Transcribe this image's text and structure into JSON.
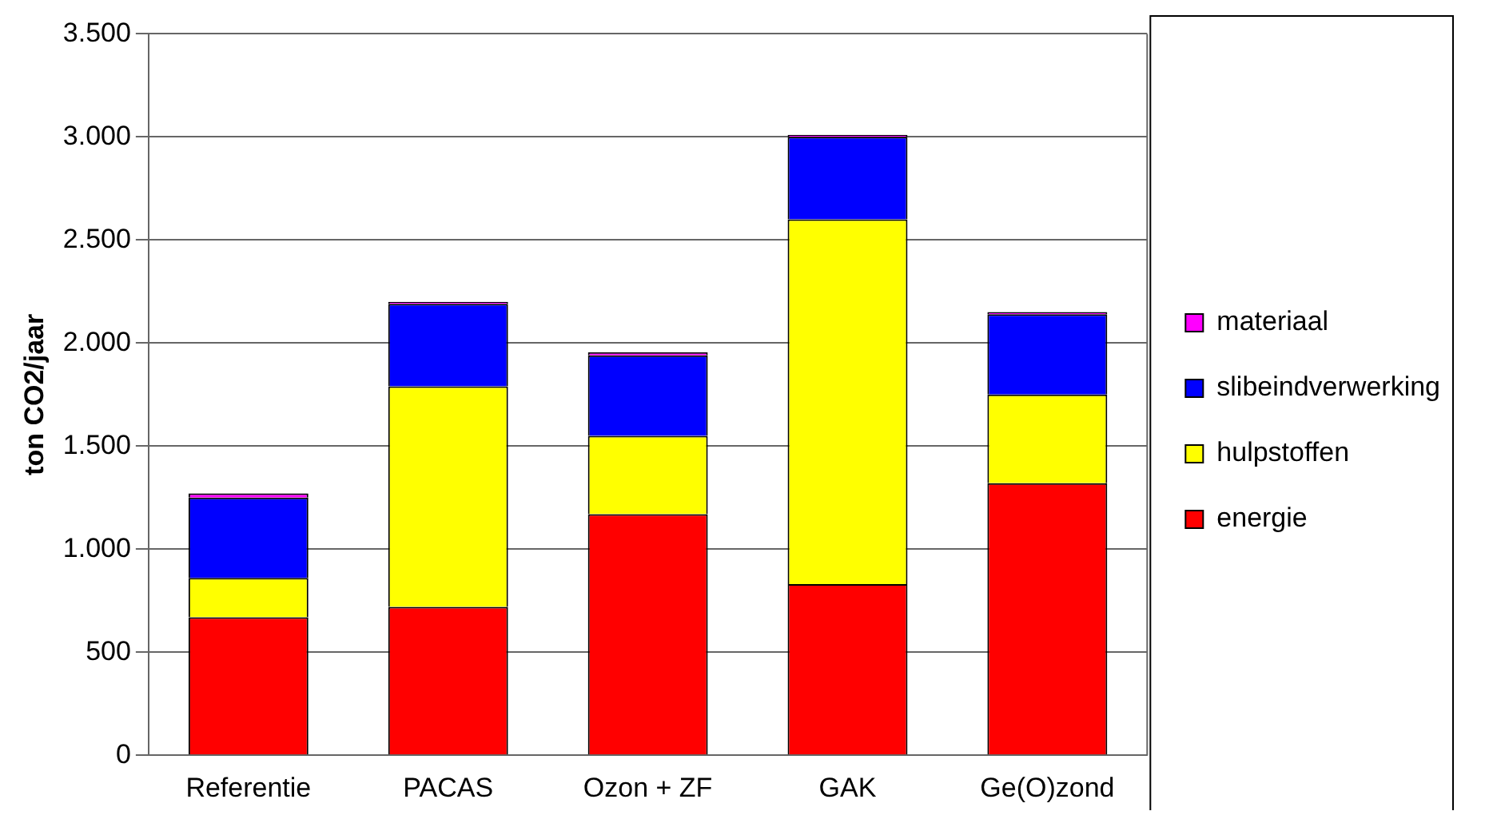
{
  "chart_data": {
    "type": "bar",
    "stacked": true,
    "ylabel": "ton CO2/jaar",
    "categories": [
      "Referentie",
      "PACAS",
      "Ozon + ZF",
      "GAK",
      "Ge(O)zond"
    ],
    "series": [
      {
        "name": "energie",
        "color": "#ff0000",
        "values": [
          670,
          720,
          1170,
          830,
          1320
        ]
      },
      {
        "name": "hulpstoffen",
        "color": "#ffff00",
        "values": [
          190,
          1070,
          380,
          1770,
          430
        ]
      },
      {
        "name": "slibeindverwerking",
        "color": "#0000ff",
        "values": [
          390,
          400,
          390,
          400,
          390
        ]
      },
      {
        "name": "materiaal",
        "color": "#ff00ff",
        "values": [
          20,
          10,
          15,
          10,
          10
        ]
      }
    ],
    "ylim": [
      0,
      3500
    ],
    "yticks": [
      {
        "value": 0,
        "label": "0"
      },
      {
        "value": 500,
        "label": "500"
      },
      {
        "value": 1000,
        "label": "1.000"
      },
      {
        "value": 1500,
        "label": "1.500"
      },
      {
        "value": 2000,
        "label": "2.000"
      },
      {
        "value": 2500,
        "label": "2.500"
      },
      {
        "value": 3000,
        "label": "3.000"
      },
      {
        "value": 3500,
        "label": "3.500"
      }
    ],
    "grid": "y",
    "legend": "right"
  }
}
